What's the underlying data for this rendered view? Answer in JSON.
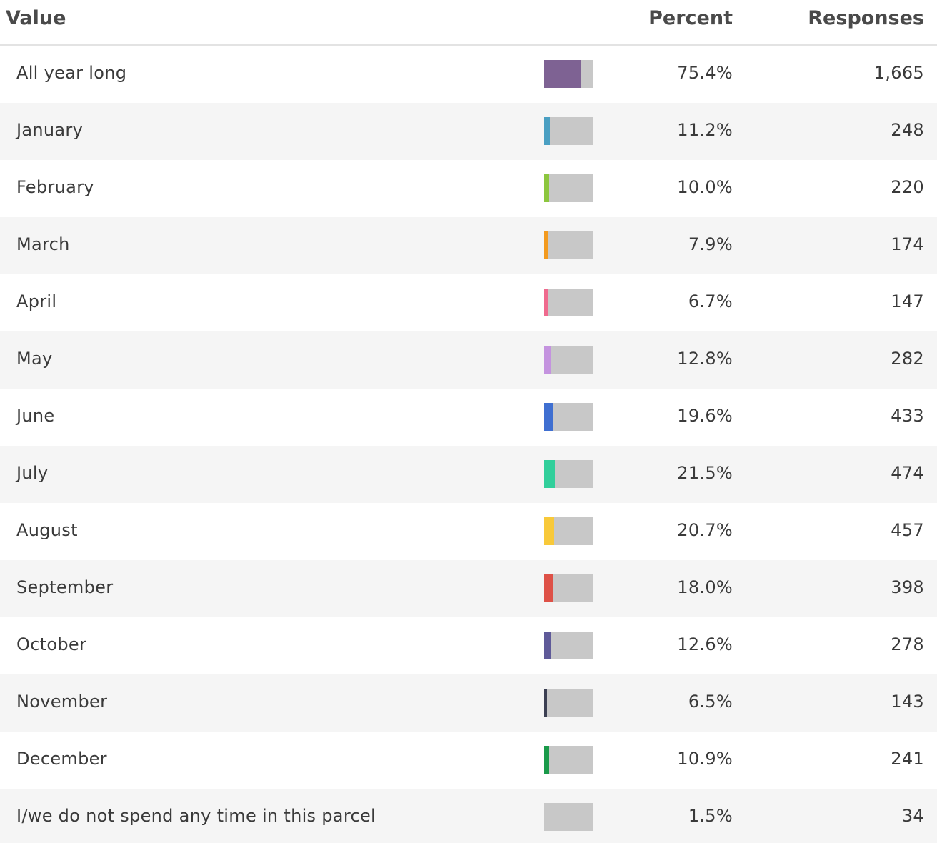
{
  "chart_data": {
    "type": "table",
    "columns": [
      "Value",
      "Percent",
      "Responses"
    ],
    "rows": [
      {
        "label": "All year long",
        "percent": "75.4%",
        "pct_value": 75.4,
        "responses": "1,665",
        "color": "#7e6293"
      },
      {
        "label": "January",
        "percent": "11.2%",
        "pct_value": 11.2,
        "responses": "248",
        "color": "#4a9fc2"
      },
      {
        "label": "February",
        "percent": "10.0%",
        "pct_value": 10.0,
        "responses": "220",
        "color": "#8cc63e"
      },
      {
        "label": "March",
        "percent": "7.9%",
        "pct_value": 7.9,
        "responses": "174",
        "color": "#f39a1e"
      },
      {
        "label": "April",
        "percent": "6.7%",
        "pct_value": 6.7,
        "responses": "147",
        "color": "#ef6a8e"
      },
      {
        "label": "May",
        "percent": "12.8%",
        "pct_value": 12.8,
        "responses": "282",
        "color": "#c493df"
      },
      {
        "label": "June",
        "percent": "19.6%",
        "pct_value": 19.6,
        "responses": "433",
        "color": "#3f6fd1"
      },
      {
        "label": "July",
        "percent": "21.5%",
        "pct_value": 21.5,
        "responses": "474",
        "color": "#31cf9b"
      },
      {
        "label": "August",
        "percent": "20.7%",
        "pct_value": 20.7,
        "responses": "457",
        "color": "#f8c93a"
      },
      {
        "label": "September",
        "percent": "18.0%",
        "pct_value": 18.0,
        "responses": "398",
        "color": "#de5147"
      },
      {
        "label": "October",
        "percent": "12.6%",
        "pct_value": 12.6,
        "responses": "278",
        "color": "#5f5a99"
      },
      {
        "label": "November",
        "percent": "6.5%",
        "pct_value": 6.5,
        "responses": "143",
        "color": "#3b3f52"
      },
      {
        "label": "December",
        "percent": "10.9%",
        "pct_value": 10.9,
        "responses": "241",
        "color": "#1a9a4a"
      },
      {
        "label": "I/we do not spend any time in this parcel",
        "percent": "1.5%",
        "pct_value": 1.5,
        "responses": "34",
        "color": "#c8c8c8"
      }
    ],
    "bar_track_color": "#c8c8c8"
  }
}
